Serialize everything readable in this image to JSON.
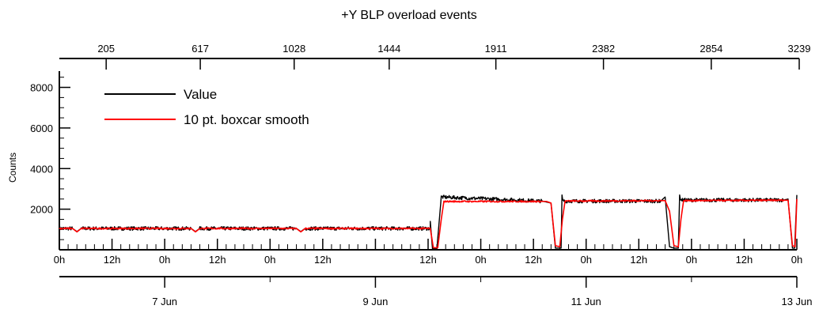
{
  "chart_data": {
    "type": "line",
    "title": "+Y BLP overload events",
    "ylabel": "Counts",
    "ylim": [
      0,
      8800
    ],
    "grid": false,
    "legend_placement": "top-left",
    "y_ticks": [
      2000,
      4000,
      6000,
      8000
    ],
    "top_axis": {
      "ticks": [
        205,
        617,
        1028,
        1444,
        1911,
        2382,
        2854,
        3239
      ]
    },
    "time_axis": {
      "range_hours": [
        0,
        168
      ],
      "tick_step_hours": 12,
      "minor_step_hours": 2,
      "labels": [
        "0h",
        "12h",
        "0h",
        "12h",
        "0h",
        "12h",
        "12h",
        "0h",
        "12h",
        "0h",
        "12h",
        "0h",
        "12h",
        "0h"
      ],
      "label_hours": [
        0,
        12,
        24,
        36,
        48,
        60,
        84,
        96,
        108,
        120,
        132,
        144,
        156,
        168
      ]
    },
    "date_axis": {
      "dates": [
        "7 Jun",
        "9 Jun",
        "11 Jun",
        "13 Jun"
      ],
      "date_hours": [
        24,
        72,
        120,
        168
      ],
      "minor_hours": [
        48,
        96,
        144
      ]
    },
    "series": [
      {
        "name": "Value",
        "color": "#000000",
        "x_hours": [
          0,
          3,
          4,
          5,
          30,
          31,
          32,
          54,
          55,
          56,
          84.5,
          84.5,
          85,
          86,
          87,
          110,
          111,
          112,
          113,
          114,
          114.3,
          114.5,
          114.7,
          137,
          138,
          139,
          140,
          141,
          141.3,
          141.5,
          141.7,
          165,
          166,
          167,
          167.5,
          168
        ],
        "y": [
          1050,
          1050,
          900,
          1050,
          1050,
          900,
          1050,
          1050,
          900,
          1050,
          1050,
          1400,
          50,
          50,
          2600,
          2400,
          2350,
          2300,
          80,
          80,
          80,
          2700,
          2400,
          2400,
          2600,
          150,
          80,
          80,
          2700,
          2450,
          2450,
          2450,
          2500,
          80,
          80,
          2700
        ]
      },
      {
        "name": "10 pt. boxcar smooth",
        "color": "#ff0000",
        "x_hours": [
          0,
          3,
          4,
          5,
          30,
          31,
          32,
          54,
          55,
          56,
          84.5,
          85.2,
          86.2,
          87,
          87.6,
          110,
          111,
          112,
          113,
          114,
          114.6,
          115.2,
          137,
          138,
          139,
          140,
          141,
          141.6,
          142.2,
          165,
          166,
          167,
          167.6,
          168
        ],
        "y": [
          1050,
          1050,
          880,
          1050,
          1050,
          880,
          1050,
          1050,
          880,
          1050,
          1050,
          100,
          100,
          1500,
          2380,
          2380,
          2380,
          2300,
          200,
          150,
          1500,
          2400,
          2420,
          2420,
          1900,
          200,
          150,
          1500,
          2420,
          2440,
          2440,
          200,
          150,
          2500
        ]
      }
    ]
  }
}
